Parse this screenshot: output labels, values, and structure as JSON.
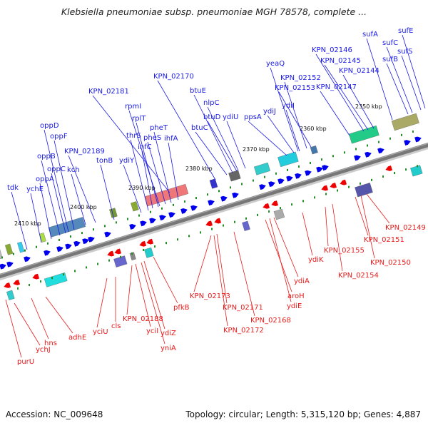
{
  "title": "Klebsiella pneumoniae subsp. pneumoniae MGH 78578, complete ...",
  "footer": {
    "accession": "Accession: NC_009648",
    "summary": "Topology: circular; Length: 5,315,120 bp; Genes: 4,887"
  },
  "colors": {
    "forward_label": "#1a1ae6",
    "reverse_label": "#e61a1a",
    "backbone": "#777777",
    "forward_feature": "#0000ee",
    "reverse_feature": "#ee0000",
    "tick_mark": "#228822"
  },
  "ticks": [
    "2350 kbp",
    "2360 kbp",
    "2370 kbp",
    "2380 kbp",
    "2390 kbp",
    "2400 kbp",
    "2410 kbp"
  ],
  "forward_genes": [
    "tdk",
    "ychE",
    "oppA",
    "oppB",
    "oppC",
    "oppD",
    "oppF",
    "kch",
    "KPN_02189",
    "tonB",
    "ydiY",
    "thrS",
    "infC",
    "rplT",
    "rpmI",
    "pheS",
    "pheT",
    "ihfA",
    "KPN_02181",
    "KPN_02170",
    "btuC",
    "btuE",
    "btuD",
    "nlpC",
    "ydiU",
    "ppsA",
    "ydiJ",
    "ydiI",
    "yeaQ",
    "KPN_02152",
    "KPN_02153",
    "KPN_02147",
    "KPN_02146",
    "KPN_02145",
    "KPN_02144",
    "sufA",
    "sufB",
    "sufC",
    "sufS",
    "sufE"
  ],
  "reverse_genes": [
    "purU",
    "ychJ",
    "hns",
    "adhE",
    "yciU",
    "cls",
    "KPN_02188",
    "yciI",
    "yniA",
    "ydiZ",
    "pfkB",
    "KPN_02173",
    "KPN_02171",
    "KPN_02172",
    "KPN_02168",
    "aroH",
    "ydiE",
    "ydiA",
    "ydiK",
    "KPN_02155",
    "KPN_02154",
    "KPN_02151",
    "KPN_02150",
    "KPN_02149"
  ]
}
